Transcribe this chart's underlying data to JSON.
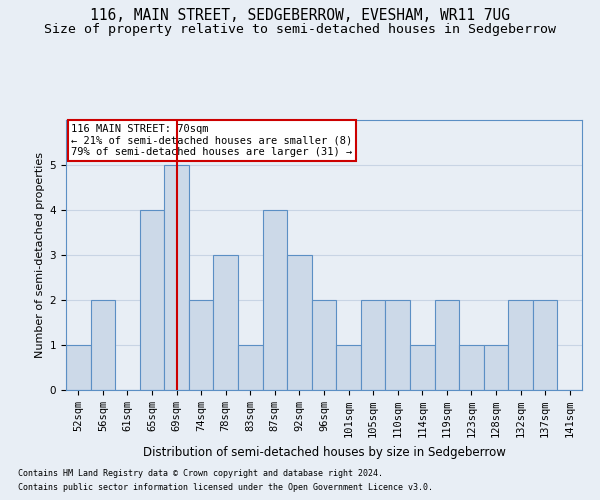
{
  "title": "116, MAIN STREET, SEDGEBERROW, EVESHAM, WR11 7UG",
  "subtitle": "Size of property relative to semi-detached houses in Sedgeberrow",
  "xlabel": "Distribution of semi-detached houses by size in Sedgeberrow",
  "ylabel": "Number of semi-detached properties",
  "footnote1": "Contains HM Land Registry data © Crown copyright and database right 2024.",
  "footnote2": "Contains public sector information licensed under the Open Government Licence v3.0.",
  "categories": [
    "52sqm",
    "56sqm",
    "61sqm",
    "65sqm",
    "69sqm",
    "74sqm",
    "78sqm",
    "83sqm",
    "87sqm",
    "92sqm",
    "96sqm",
    "101sqm",
    "105sqm",
    "110sqm",
    "114sqm",
    "119sqm",
    "123sqm",
    "128sqm",
    "132sqm",
    "137sqm",
    "141sqm"
  ],
  "values": [
    1,
    2,
    0,
    4,
    5,
    2,
    3,
    1,
    4,
    3,
    2,
    1,
    2,
    2,
    1,
    2,
    1,
    1,
    2,
    2,
    0
  ],
  "bar_color": "#ccd9e8",
  "bar_edge_color": "#5b8fc4",
  "subject_bar_index": 4,
  "subject_line_color": "#cc0000",
  "annotation_line1": "116 MAIN STREET: 70sqm",
  "annotation_line2": "← 21% of semi-detached houses are smaller (8)",
  "annotation_line3": "79% of semi-detached houses are larger (31) →",
  "annotation_box_color": "#ffffff",
  "annotation_box_edge": "#cc0000",
  "ylim": [
    0,
    6
  ],
  "yticks": [
    0,
    1,
    2,
    3,
    4,
    5,
    6
  ],
  "grid_color": "#c8d4e4",
  "bg_color": "#e8eef5",
  "title_fontsize": 10.5,
  "subtitle_fontsize": 9.5,
  "ylabel_fontsize": 8,
  "xlabel_fontsize": 8.5,
  "tick_fontsize": 7.5,
  "footnote_fontsize": 6
}
